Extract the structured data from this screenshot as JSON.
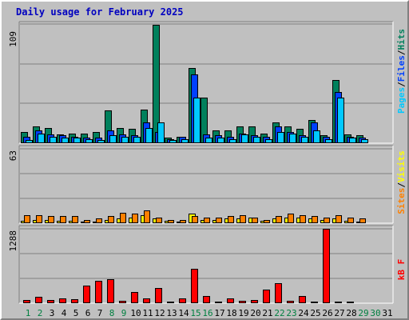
{
  "title": "Daily usage for February 2025",
  "colors": {
    "background": "#c0c0c0",
    "grid": "#808080",
    "title": "#0000c0",
    "hits": "#00805c",
    "files": "#0040ff",
    "pages": "#00c8ff",
    "visits": "#ffff00",
    "sites": "#ff8000",
    "kbytes": "#ff0000",
    "weekday_label": "#000000",
    "weekend_label": "#008040"
  },
  "chart_data": [
    {
      "type": "bar",
      "name": "hits_files_pages",
      "ymax_label": "109",
      "ylim": [
        0,
        109
      ],
      "legend": [
        {
          "label": "Pages",
          "color": "#00c8ff"
        },
        {
          "label": "/",
          "color": "#000000"
        },
        {
          "label": "Files",
          "color": "#0040ff"
        },
        {
          "label": "/",
          "color": "#000000"
        },
        {
          "label": "Hits",
          "color": "#00805c"
        }
      ],
      "series": [
        {
          "name": "Hits",
          "color": "#00805c",
          "values": [
            10,
            15,
            14,
            8,
            9,
            9,
            10,
            30,
            14,
            13,
            31,
            108,
            5,
            6,
            69,
            42,
            12,
            12,
            15,
            15,
            9,
            19,
            15,
            13,
            21,
            7,
            58,
            8,
            7,
            0,
            0
          ]
        },
        {
          "name": "Files",
          "color": "#0040ff",
          "values": [
            6,
            12,
            8,
            7,
            6,
            5,
            5,
            12,
            8,
            7,
            19,
            10,
            4,
            6,
            63,
            8,
            7,
            6,
            9,
            7,
            6,
            15,
            10,
            7,
            19,
            6,
            47,
            6,
            5,
            0,
            0
          ]
        },
        {
          "name": "Pages",
          "color": "#00c8ff",
          "values": [
            3,
            9,
            6,
            5,
            5,
            4,
            3,
            7,
            6,
            6,
            14,
            19,
            3,
            4,
            42,
            5,
            5,
            4,
            8,
            6,
            4,
            10,
            9,
            6,
            12,
            4,
            42,
            5,
            4,
            0,
            0
          ]
        }
      ]
    },
    {
      "type": "bar",
      "name": "visits_sites",
      "ymax_label": "63",
      "ylim": [
        0,
        63
      ],
      "legend": [
        {
          "label": "Sites",
          "color": "#ff8000"
        },
        {
          "label": "/",
          "color": "#000000"
        },
        {
          "label": "Visits",
          "color": "#ffff00"
        }
      ],
      "series": [
        {
          "name": "Visits",
          "color": "#ffff00",
          "values": [
            2,
            3,
            3,
            2,
            2,
            1,
            1,
            3,
            4,
            5,
            7,
            4,
            2,
            1,
            8,
            3,
            3,
            4,
            4,
            5,
            2,
            4,
            5,
            5,
            4,
            3,
            4,
            2,
            1,
            0,
            0
          ]
        },
        {
          "name": "Sites",
          "color": "#ff8000",
          "values": [
            7,
            7,
            6,
            6,
            6,
            3,
            4,
            6,
            9,
            8,
            11,
            5,
            3,
            3,
            6,
            5,
            5,
            6,
            7,
            5,
            3,
            6,
            8,
            7,
            6,
            5,
            7,
            5,
            4,
            0,
            0
          ]
        }
      ]
    },
    {
      "type": "bar",
      "name": "kbytes",
      "ymax_label": "1288",
      "ylim": [
        0,
        1288
      ],
      "legend": [
        {
          "label": "kB F",
          "color": "#ff0000"
        }
      ],
      "series": [
        {
          "name": "kB F",
          "color": "#ff0000",
          "values": [
            60,
            110,
            60,
            85,
            65,
            310,
            390,
            420,
            40,
            190,
            90,
            260,
            20,
            85,
            600,
            130,
            25,
            90,
            45,
            60,
            235,
            350,
            35,
            130,
            15,
            1288,
            20,
            15,
            0,
            0,
            0
          ]
        }
      ]
    }
  ],
  "days": [
    {
      "label": "1",
      "weekend": true
    },
    {
      "label": "2",
      "weekend": true
    },
    {
      "label": "3",
      "weekend": false
    },
    {
      "label": "4",
      "weekend": false
    },
    {
      "label": "5",
      "weekend": false
    },
    {
      "label": "6",
      "weekend": false
    },
    {
      "label": "7",
      "weekend": false
    },
    {
      "label": "8",
      "weekend": true
    },
    {
      "label": "9",
      "weekend": true
    },
    {
      "label": "10",
      "weekend": false
    },
    {
      "label": "11",
      "weekend": false
    },
    {
      "label": "12",
      "weekend": false
    },
    {
      "label": "13",
      "weekend": false
    },
    {
      "label": "14",
      "weekend": false
    },
    {
      "label": "15",
      "weekend": true
    },
    {
      "label": "16",
      "weekend": true
    },
    {
      "label": "17",
      "weekend": false
    },
    {
      "label": "18",
      "weekend": false
    },
    {
      "label": "19",
      "weekend": false
    },
    {
      "label": "20",
      "weekend": false
    },
    {
      "label": "21",
      "weekend": false
    },
    {
      "label": "22",
      "weekend": true
    },
    {
      "label": "23",
      "weekend": true
    },
    {
      "label": "24",
      "weekend": false
    },
    {
      "label": "25",
      "weekend": false
    },
    {
      "label": "26",
      "weekend": false
    },
    {
      "label": "27",
      "weekend": false
    },
    {
      "label": "28",
      "weekend": false
    },
    {
      "label": "29",
      "weekend": true
    },
    {
      "label": "30",
      "weekend": true
    },
    {
      "label": "31",
      "weekend": false
    }
  ]
}
